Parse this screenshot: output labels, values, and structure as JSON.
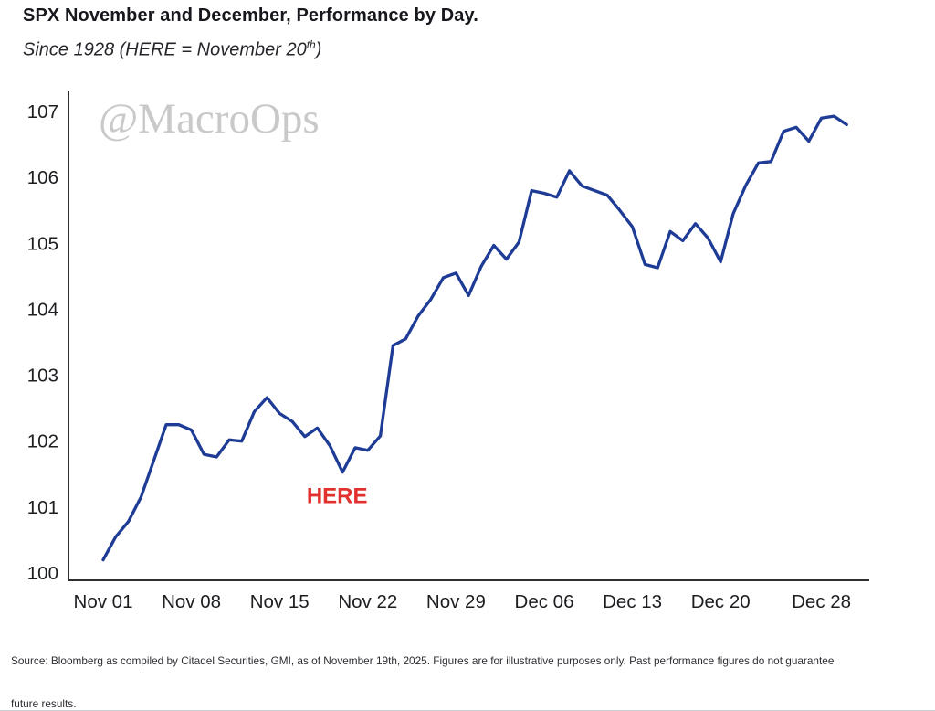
{
  "header": {
    "title": "SPX November and December, Performance by Day.",
    "subtitle_prefix": "Since 1928 (HERE = November 20",
    "subtitle_sup": "th",
    "subtitle_suffix": ")"
  },
  "watermark": "@MacroOps",
  "chart_data": {
    "type": "line",
    "title": "SPX November and December, Performance by Day.",
    "subtitle": "Since 1928 (HERE = November 20th)",
    "xlabel": "",
    "ylabel": "",
    "ylim": [
      100,
      107
    ],
    "yticks": [
      100,
      101,
      102,
      103,
      104,
      105,
      106,
      107
    ],
    "grid": false,
    "legend_position": "none",
    "line_color": "#1e3c96",
    "axis_color": "#2b2d31",
    "watermark_color": "#c9c9c9",
    "x": [
      "Nov 01",
      "Nov 02",
      "Nov 03",
      "Nov 04",
      "Nov 05",
      "Nov 06",
      "Nov 07",
      "Nov 08",
      "Nov 09",
      "Nov 10",
      "Nov 11",
      "Nov 12",
      "Nov 13",
      "Nov 14",
      "Nov 15",
      "Nov 16",
      "Nov 17",
      "Nov 18",
      "Nov 19",
      "Nov 20",
      "Nov 21",
      "Nov 22",
      "Nov 23",
      "Nov 24",
      "Nov 25",
      "Nov 26",
      "Nov 27",
      "Nov 28",
      "Nov 29",
      "Nov 30",
      "Dec 01",
      "Dec 02",
      "Dec 03",
      "Dec 04",
      "Dec 05",
      "Dec 06",
      "Dec 07",
      "Dec 08",
      "Dec 09",
      "Dec 10",
      "Dec 11",
      "Dec 12",
      "Dec 13",
      "Dec 14",
      "Dec 15",
      "Dec 16",
      "Dec 17",
      "Dec 18",
      "Dec 19",
      "Dec 20",
      "Dec 21",
      "Dec 22",
      "Dec 23",
      "Dec 24",
      "Dec 25",
      "Dec 26",
      "Dec 27",
      "Dec 28",
      "Dec 29",
      "Dec 30"
    ],
    "values": [
      100.2,
      100.55,
      100.78,
      101.15,
      101.7,
      102.25,
      102.25,
      102.17,
      101.8,
      101.76,
      102.02,
      102.0,
      102.45,
      102.66,
      102.42,
      102.3,
      102.07,
      102.2,
      101.93,
      101.53,
      101.9,
      101.86,
      102.08,
      103.45,
      103.55,
      103.9,
      104.15,
      104.48,
      104.55,
      104.21,
      104.65,
      104.97,
      104.76,
      105.02,
      105.8,
      105.76,
      105.7,
      106.1,
      105.87,
      105.8,
      105.73,
      105.5,
      105.25,
      104.68,
      104.63,
      105.18,
      105.04,
      105.3,
      105.08,
      104.72,
      105.45,
      105.88,
      106.22,
      106.24,
      106.7,
      106.76,
      106.55,
      106.9,
      106.93,
      106.8
    ],
    "xtick_indices": [
      0,
      7,
      14,
      21,
      28,
      35,
      42,
      49,
      57
    ],
    "xtick_labels": [
      "Nov 01",
      "Nov 08",
      "Nov 15",
      "Nov 22",
      "Nov 29",
      "Dec 06",
      "Dec 13",
      "Dec 20",
      "Dec 28"
    ],
    "annotation": {
      "text": "HERE",
      "color": "#e0312e",
      "day_index": 19,
      "date": "Nov 20"
    }
  },
  "footer": {
    "line1": "Source: Bloomberg as compiled by Citadel Securities, GMI, as of November 19th, 2025. Figures are for illustrative purposes only. Past performance figures do not guarantee",
    "line2": "future results."
  }
}
